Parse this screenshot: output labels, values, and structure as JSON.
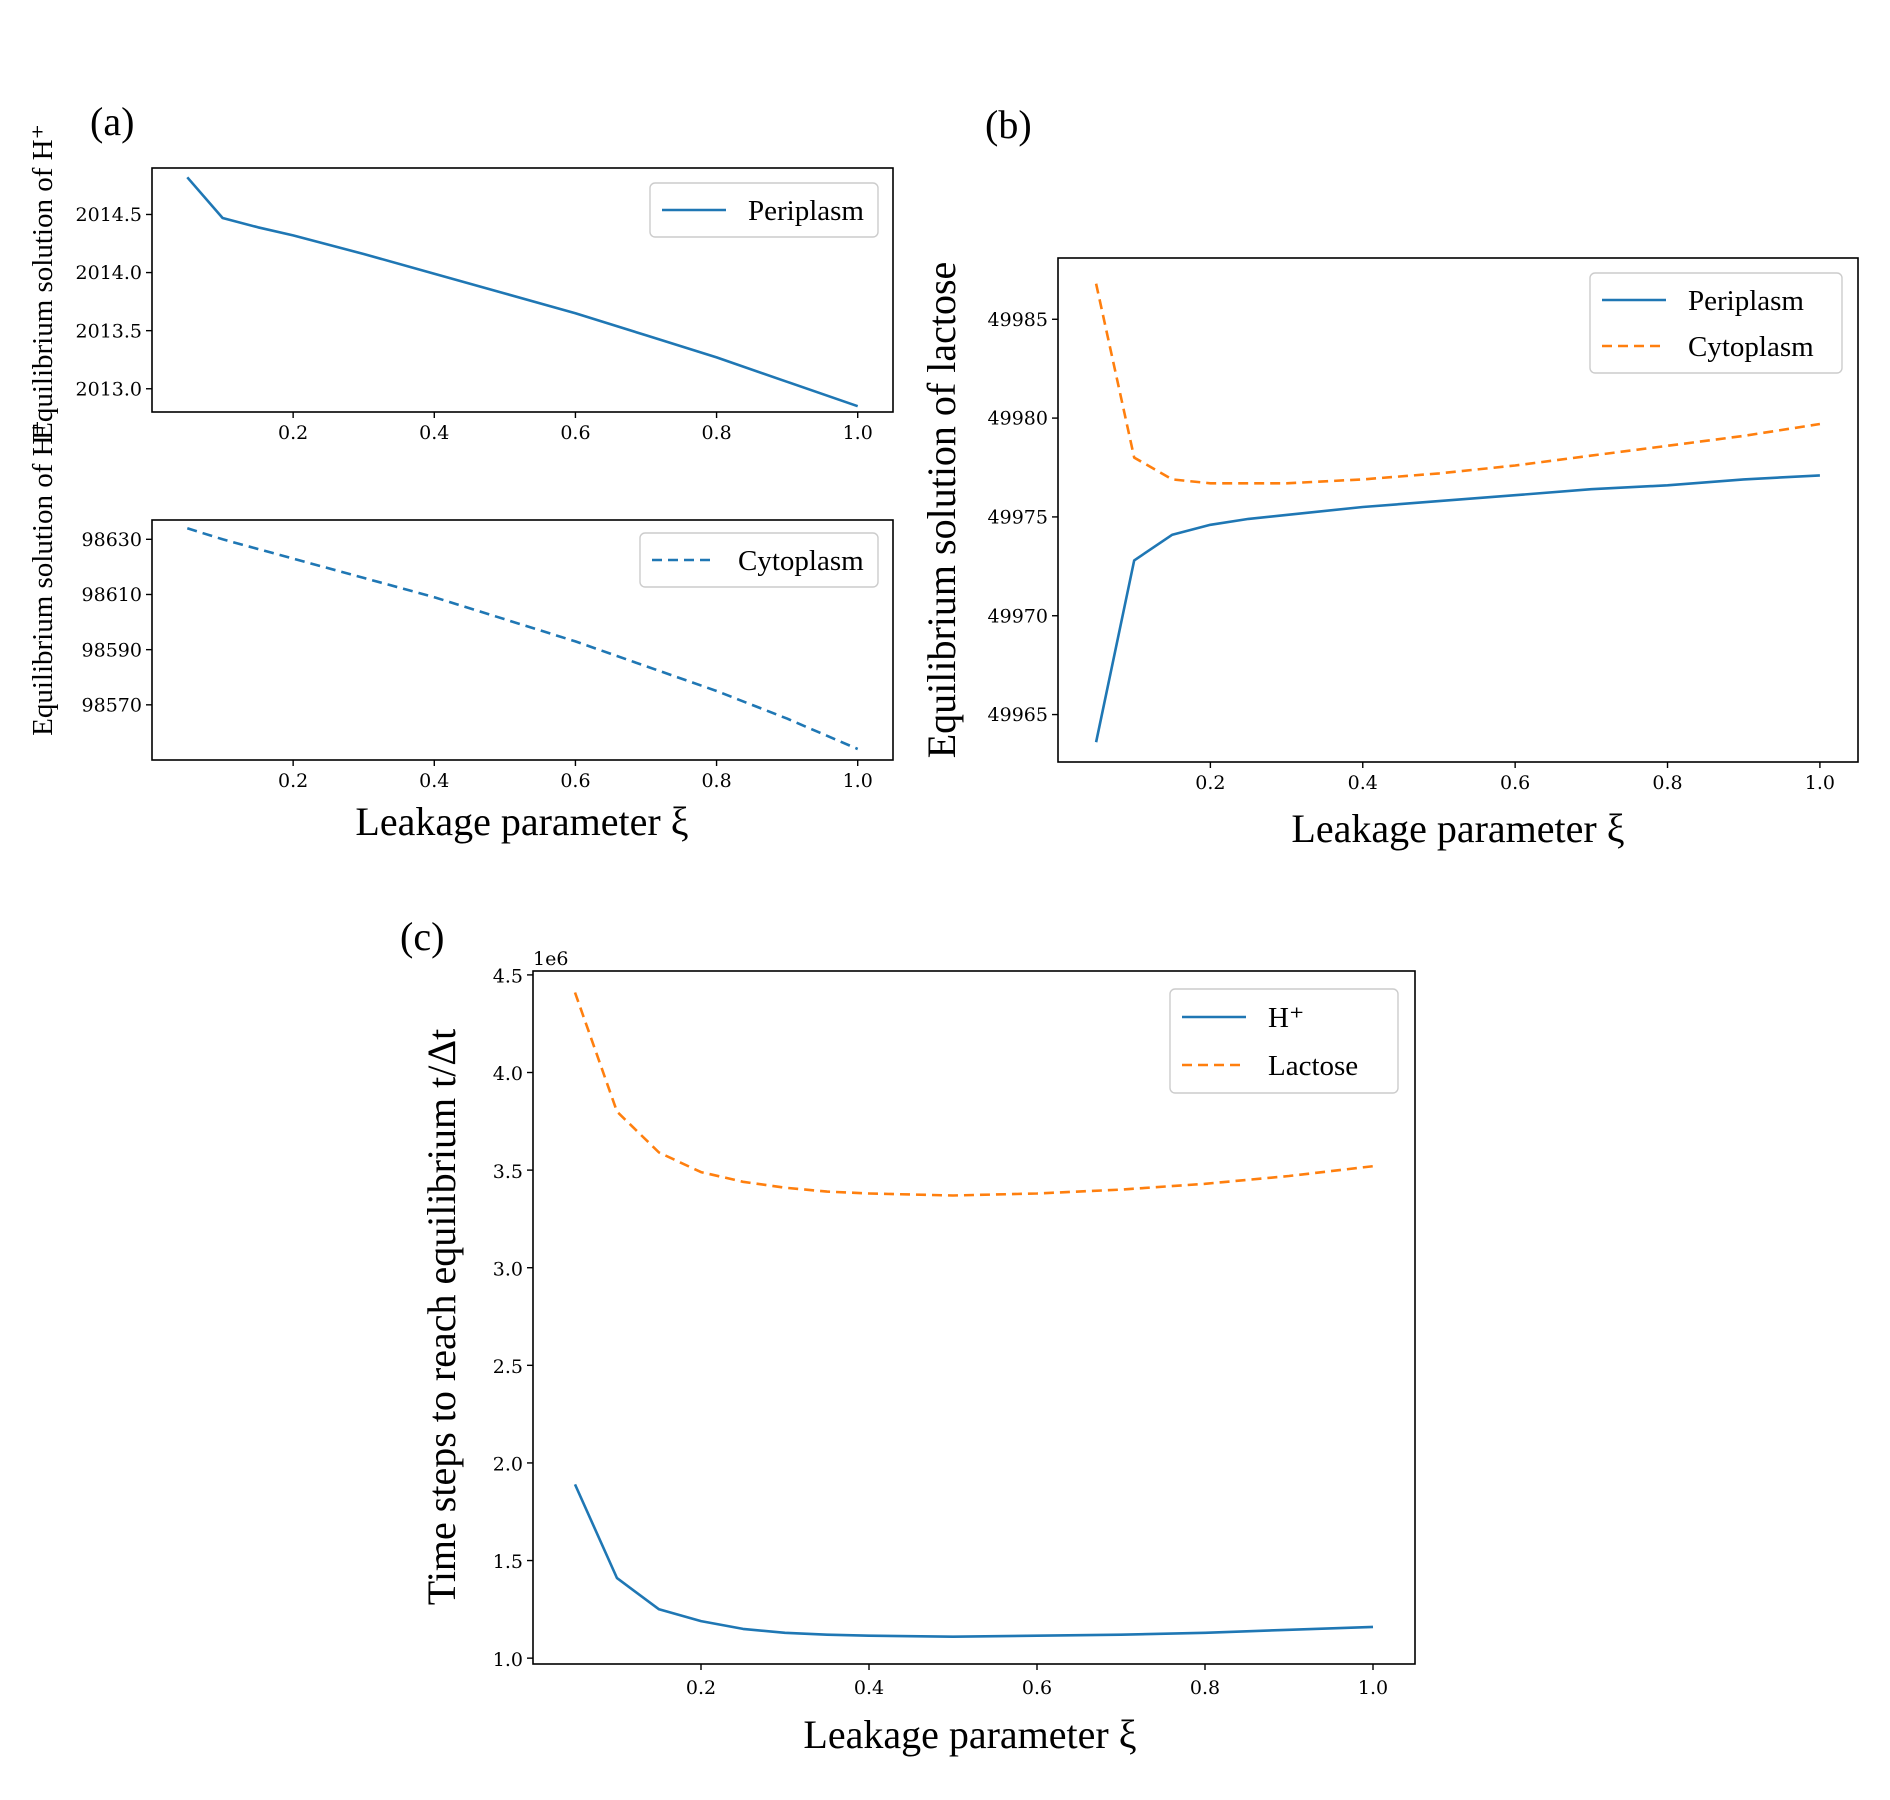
{
  "colors": {
    "blue": "#1f77b4",
    "orange": "#ff7f0e"
  },
  "chart_data": [
    {
      "panel": "(a)",
      "type": "line",
      "shared_ylabel": "Equilibrium solution of H⁺",
      "xlabel": "",
      "xlim": [
        0.0,
        1.05
      ],
      "xticks": [
        0.2,
        0.4,
        0.6,
        0.8,
        1.0
      ],
      "xtick_labels": [
        "0.2",
        "0.4",
        "0.6",
        "0.8",
        "1.0"
      ],
      "ylim": [
        2012.8,
        2014.9
      ],
      "yticks": [
        2013.0,
        2013.5,
        2014.0,
        2014.5
      ],
      "ytick_labels": [
        "2013.0",
        "2013.5",
        "2014.0",
        "2014.5"
      ],
      "legend_position": "upper-right",
      "series": [
        {
          "name": "Periplasm",
          "color": "blue",
          "dash": "solid",
          "x": [
            0.05,
            0.1,
            0.15,
            0.2,
            0.3,
            0.4,
            0.5,
            0.6,
            0.7,
            0.8,
            0.9,
            1.0
          ],
          "y": [
            2014.82,
            2014.47,
            2014.39,
            2014.32,
            2014.16,
            2013.99,
            2013.82,
            2013.65,
            2013.46,
            2013.27,
            2013.06,
            2012.85
          ]
        }
      ]
    },
    {
      "panel": "",
      "type": "line",
      "xlabel": "Leakage parameter ξ",
      "xlim": [
        0.0,
        1.05
      ],
      "xticks": [
        0.2,
        0.4,
        0.6,
        0.8,
        1.0
      ],
      "xtick_labels": [
        "0.2",
        "0.4",
        "0.6",
        "0.8",
        "1.0"
      ],
      "ylim": [
        98550,
        98637
      ],
      "yticks": [
        98570,
        98590,
        98610,
        98630
      ],
      "ytick_labels": [
        "98570",
        "98590",
        "98610",
        "98630"
      ],
      "legend_position": "upper-right",
      "series": [
        {
          "name": "Cytoplasm",
          "color": "blue",
          "dash": "dashed",
          "x": [
            0.05,
            0.1,
            0.2,
            0.3,
            0.4,
            0.5,
            0.6,
            0.7,
            0.8,
            0.9,
            1.0
          ],
          "y": [
            98634,
            98630,
            98623,
            98616,
            98609,
            98601,
            98593,
            98584,
            98575,
            98565,
            98554
          ]
        }
      ]
    },
    {
      "panel": "(b)",
      "type": "line",
      "ylabel": "Equilibrium solution of lactose",
      "xlabel": "Leakage parameter ξ",
      "xlim": [
        0.0,
        1.05
      ],
      "xticks": [
        0.2,
        0.4,
        0.6,
        0.8,
        1.0
      ],
      "xtick_labels": [
        "0.2",
        "0.4",
        "0.6",
        "0.8",
        "1.0"
      ],
      "ylim": [
        49962.6,
        49988.1
      ],
      "yticks": [
        49965,
        49970,
        49975,
        49980,
        49985
      ],
      "ytick_labels": [
        "49965",
        "49970",
        "49975",
        "49980",
        "49985"
      ],
      "legend_position": "upper-right",
      "series": [
        {
          "name": "Periplasm",
          "color": "blue",
          "dash": "solid",
          "x": [
            0.05,
            0.1,
            0.15,
            0.2,
            0.25,
            0.3,
            0.4,
            0.5,
            0.6,
            0.7,
            0.8,
            0.9,
            1.0
          ],
          "y": [
            49963.6,
            49972.8,
            49974.1,
            49974.6,
            49974.9,
            49975.1,
            49975.5,
            49975.8,
            49976.1,
            49976.4,
            49976.6,
            49976.9,
            49977.1
          ]
        },
        {
          "name": "Cytoplasm",
          "color": "orange",
          "dash": "dashed",
          "x": [
            0.05,
            0.1,
            0.15,
            0.2,
            0.25,
            0.3,
            0.4,
            0.5,
            0.6,
            0.7,
            0.8,
            0.9,
            1.0
          ],
          "y": [
            49986.8,
            49978.0,
            49976.9,
            49976.7,
            49976.7,
            49976.7,
            49976.9,
            49977.2,
            49977.6,
            49978.1,
            49978.6,
            49979.1,
            49979.7
          ]
        }
      ]
    },
    {
      "panel": "(c)",
      "type": "line",
      "ylabel": "Time steps to reach equilibrium t/Δt",
      "xlabel": "Leakage parameter ξ",
      "offset_text": "1e6",
      "xlim": [
        0.0,
        1.05
      ],
      "xticks": [
        0.2,
        0.4,
        0.6,
        0.8,
        1.0
      ],
      "xtick_labels": [
        "0.2",
        "0.4",
        "0.6",
        "0.8",
        "1.0"
      ],
      "ylim": [
        0.97,
        4.52
      ],
      "yticks": [
        1.0,
        1.5,
        2.0,
        2.5,
        3.0,
        3.5,
        4.0,
        4.5
      ],
      "ytick_labels": [
        "1.0",
        "1.5",
        "2.0",
        "2.5",
        "3.0",
        "3.5",
        "4.0",
        "4.5"
      ],
      "legend_position": "upper-right",
      "series": [
        {
          "name": "H⁺",
          "color": "blue",
          "dash": "solid",
          "x": [
            0.05,
            0.1,
            0.15,
            0.2,
            0.25,
            0.3,
            0.35,
            0.4,
            0.5,
            0.6,
            0.7,
            0.8,
            0.9,
            1.0
          ],
          "y": [
            1.89,
            1.41,
            1.25,
            1.19,
            1.15,
            1.13,
            1.12,
            1.115,
            1.11,
            1.115,
            1.12,
            1.13,
            1.145,
            1.16
          ]
        },
        {
          "name": "Lactose",
          "color": "orange",
          "dash": "dashed",
          "x": [
            0.05,
            0.1,
            0.15,
            0.2,
            0.25,
            0.3,
            0.35,
            0.4,
            0.5,
            0.6,
            0.7,
            0.8,
            0.9,
            1.0
          ],
          "y": [
            4.41,
            3.8,
            3.59,
            3.49,
            3.44,
            3.41,
            3.39,
            3.38,
            3.37,
            3.38,
            3.4,
            3.43,
            3.47,
            3.52
          ]
        }
      ]
    }
  ]
}
